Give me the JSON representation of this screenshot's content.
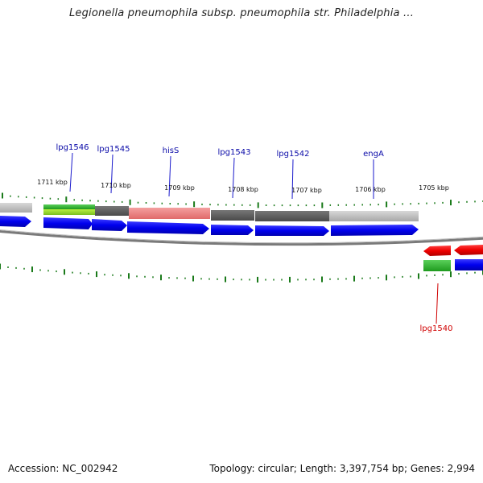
{
  "title": "Legionella pneumophila subsp. pneumophila str. Philadelphia ...",
  "footer": {
    "accession": "Accession: NC_002942",
    "summary": "Topology: circular; Length: 3,397,754 bp; Genes: 2,994"
  },
  "kbp_ticks": [
    {
      "label": "1711 kbp"
    },
    {
      "label": "1710 kbp"
    },
    {
      "label": "1709 kbp"
    },
    {
      "label": "1708 kbp"
    },
    {
      "label": "1707 kbp"
    },
    {
      "label": "1706 kbp"
    },
    {
      "label": "1705 kbp"
    }
  ],
  "genes": [
    {
      "name": "lpg1546",
      "strand": "forward"
    },
    {
      "name": "lpg1545",
      "strand": "forward"
    },
    {
      "name": "hisS",
      "strand": "forward"
    },
    {
      "name": "lpg1543",
      "strand": "forward"
    },
    {
      "name": "lpg1542",
      "strand": "forward"
    },
    {
      "name": "engA",
      "strand": "forward"
    },
    {
      "name": "lpg1540",
      "strand": "reverse"
    }
  ],
  "colors": {
    "forward_gene": "#0000ee",
    "reverse_gene": "#ee0000",
    "forward_label": "#0a0aa8",
    "reverse_label": "#d00000",
    "tick": "#1a7a1a",
    "backbone": "#888888"
  }
}
